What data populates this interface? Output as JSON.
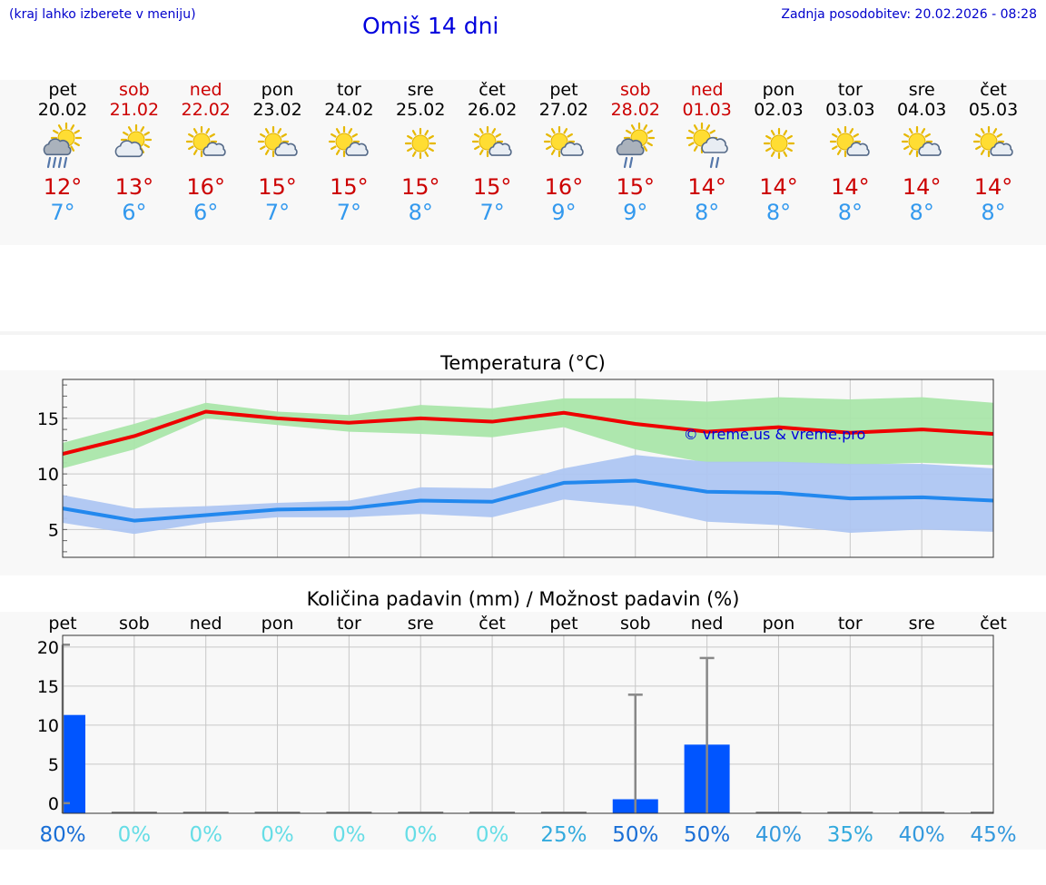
{
  "header": {
    "left_note": "(kraj lahko izberete v meniju)",
    "title": "Omiš 14 dni",
    "updated": "Zadnja posodobitev: 20.02.2026 - 08:28"
  },
  "days": [
    {
      "name": "pet",
      "date": "20.02",
      "tmax": "12°",
      "tmin": "7°",
      "icon": "sun-cloud-heavy-rain-icon",
      "weekend": false
    },
    {
      "name": "sob",
      "date": "21.02",
      "tmax": "13°",
      "tmin": "6°",
      "icon": "sun-cloud-icon",
      "weekend": true
    },
    {
      "name": "ned",
      "date": "22.02",
      "tmax": "16°",
      "tmin": "6°",
      "icon": "sun-small-cloud-icon",
      "weekend": true
    },
    {
      "name": "pon",
      "date": "23.02",
      "tmax": "15°",
      "tmin": "7°",
      "icon": "sun-small-cloud-icon",
      "weekend": false
    },
    {
      "name": "tor",
      "date": "24.02",
      "tmax": "15°",
      "tmin": "7°",
      "icon": "sun-small-cloud-icon",
      "weekend": false
    },
    {
      "name": "sre",
      "date": "25.02",
      "tmax": "15°",
      "tmin": "8°",
      "icon": "sun-icon",
      "weekend": false
    },
    {
      "name": "čet",
      "date": "26.02",
      "tmax": "15°",
      "tmin": "7°",
      "icon": "sun-small-cloud-icon",
      "weekend": false
    },
    {
      "name": "pet",
      "date": "27.02",
      "tmax": "16°",
      "tmin": "9°",
      "icon": "sun-small-cloud-icon",
      "weekend": false
    },
    {
      "name": "sob",
      "date": "28.02",
      "tmax": "15°",
      "tmin": "9°",
      "icon": "sun-cloud-rain-icon",
      "weekend": true
    },
    {
      "name": "ned",
      "date": "01.03",
      "tmax": "14°",
      "tmin": "8°",
      "icon": "sun-cloud-light-rain-icon",
      "weekend": true
    },
    {
      "name": "pon",
      "date": "02.03",
      "tmax": "14°",
      "tmin": "8°",
      "icon": "sun-icon",
      "weekend": false
    },
    {
      "name": "tor",
      "date": "03.03",
      "tmax": "14°",
      "tmin": "8°",
      "icon": "sun-small-cloud-icon",
      "weekend": false
    },
    {
      "name": "sre",
      "date": "04.03",
      "tmax": "14°",
      "tmin": "8°",
      "icon": "sun-small-cloud-icon",
      "weekend": false
    },
    {
      "name": "čet",
      "date": "05.03",
      "tmax": "14°",
      "tmin": "8°",
      "icon": "sun-small-cloud-icon",
      "weekend": false
    }
  ],
  "colors": {
    "max_line": "#ee0000",
    "min_line": "#2288ee",
    "max_band": "#aae6aa",
    "min_band": "#aec6f2",
    "bar": "#0055ff",
    "whisker": "#888888",
    "watermark": "#0000dd"
  },
  "chart_data": [
    {
      "type": "line",
      "title": "Temperatura (°C)",
      "watermark": "© vreme.us & vreme.pro",
      "ylim": [
        2.5,
        18.5
      ],
      "yticks": [
        5,
        10,
        15
      ],
      "x": [
        0,
        1,
        2,
        3,
        4,
        5,
        6,
        7,
        8,
        9,
        10,
        11,
        12,
        13
      ],
      "series": [
        {
          "name": "max",
          "values": [
            11.8,
            13.4,
            15.6,
            15.0,
            14.6,
            15.0,
            14.7,
            15.5,
            14.5,
            13.8,
            14.2,
            13.7,
            14.0,
            13.6
          ],
          "band_low": [
            10.5,
            12.2,
            15.0,
            14.4,
            13.8,
            13.6,
            13.3,
            14.2,
            12.2,
            11.0,
            11.0,
            10.8,
            11.0,
            10.8
          ],
          "band_high": [
            12.8,
            14.5,
            16.4,
            15.6,
            15.3,
            16.2,
            15.9,
            16.8,
            16.8,
            16.5,
            16.9,
            16.7,
            16.9,
            16.4
          ]
        },
        {
          "name": "min",
          "values": [
            6.9,
            5.8,
            6.3,
            6.8,
            6.9,
            7.6,
            7.5,
            9.2,
            9.4,
            8.4,
            8.3,
            7.8,
            7.9,
            7.6
          ],
          "band_low": [
            5.6,
            4.6,
            5.6,
            6.1,
            6.1,
            6.4,
            6.1,
            7.7,
            7.1,
            5.7,
            5.4,
            4.7,
            5.0,
            4.8
          ],
          "band_high": [
            8.1,
            6.9,
            7.1,
            7.4,
            7.6,
            8.8,
            8.7,
            10.5,
            11.7,
            11.1,
            11.1,
            10.9,
            10.9,
            10.5
          ]
        }
      ]
    },
    {
      "type": "bar",
      "title": "Količina padavin (mm) / Možnost padavin (%)",
      "categories": [
        "pet",
        "sob",
        "ned",
        "pon",
        "tor",
        "sre",
        "čet",
        "pet",
        "sob",
        "ned",
        "pon",
        "tor",
        "sre",
        "čet"
      ],
      "ylim": [
        -1.3,
        21.5
      ],
      "yticks": [
        0,
        5,
        10,
        15,
        20
      ],
      "values": [
        11.3,
        0,
        0,
        0,
        0,
        0,
        0,
        0,
        0.5,
        7.5,
        0,
        0,
        0,
        0
      ],
      "whisker_high": [
        20.3,
        0,
        0,
        0,
        0,
        0,
        0,
        0,
        13.9,
        18.6,
        0,
        0,
        0,
        0
      ],
      "probability": [
        "80%",
        "0%",
        "0%",
        "0%",
        "0%",
        "0%",
        "0%",
        "25%",
        "50%",
        "50%",
        "40%",
        "35%",
        "40%",
        "45%"
      ],
      "probability_colors": [
        "#1a6fd6",
        "#66dde6",
        "#66dde6",
        "#66dde6",
        "#66dde6",
        "#66dde6",
        "#66dde6",
        "#33aadd",
        "#1a6fd6",
        "#1a6fd6",
        "#3399dd",
        "#33aadd",
        "#3399dd",
        "#3399dd"
      ]
    }
  ]
}
